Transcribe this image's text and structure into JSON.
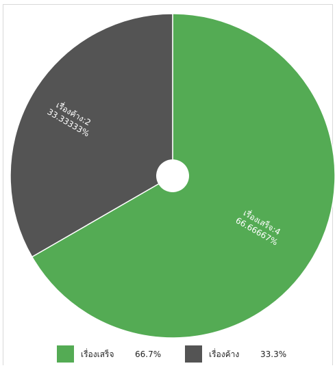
{
  "chart_data": {
    "type": "pie",
    "title": "",
    "slices": [
      {
        "name": "เรื่องเสร็จ",
        "value": 4,
        "percent_label": "66.66667%",
        "legend_percent": "66.7%",
        "color": "#54ab54"
      },
      {
        "name": "เรื่องค้าง",
        "value": 2,
        "percent_label": "33.33333%",
        "legend_percent": "33.3%",
        "color": "#545454"
      }
    ],
    "legend_placement": "bottom",
    "start_angle": 0,
    "direction": "clockwise",
    "has_center_hole": true
  }
}
